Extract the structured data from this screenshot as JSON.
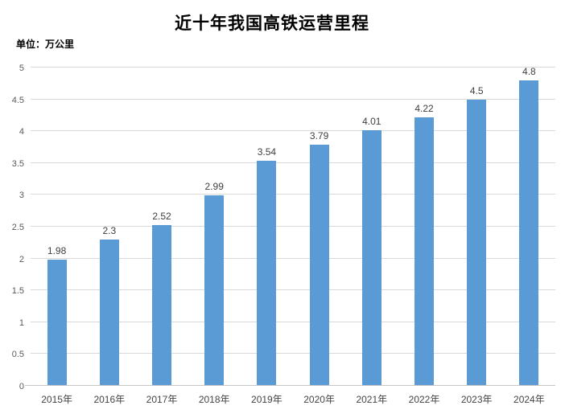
{
  "chart_data": {
    "type": "bar",
    "title": "近十年我国高铁运营里程",
    "unit_label": "单位：万公里",
    "categories": [
      "2015年",
      "2016年",
      "2017年",
      "2018年",
      "2019年",
      "2020年",
      "2021年",
      "2022年",
      "2023年",
      "2024年"
    ],
    "values": [
      1.98,
      2.3,
      2.52,
      2.99,
      3.54,
      3.79,
      4.01,
      4.22,
      4.5,
      4.8
    ],
    "value_labels": [
      "1.98",
      "2.3",
      "2.52",
      "2.99",
      "3.54",
      "3.79",
      "4.01",
      "4.22",
      "4.5",
      "4.8"
    ],
    "xlabel": "",
    "ylabel": "",
    "ylim": [
      0,
      5
    ],
    "yticks": [
      "0",
      "0.5",
      "1",
      "1.5",
      "2",
      "2.5",
      "3",
      "3.5",
      "4",
      "4.5",
      "5"
    ],
    "grid": "horizontal",
    "legend_position": "none",
    "colors": {
      "bar": "#5B9BD5",
      "gridline": "#d9d9d9",
      "axis_line": "#c6c6c6",
      "ytick_text": "#595959",
      "xtick_text": "#444444",
      "value_label_text": "#404040",
      "title_text": "#000000"
    }
  }
}
